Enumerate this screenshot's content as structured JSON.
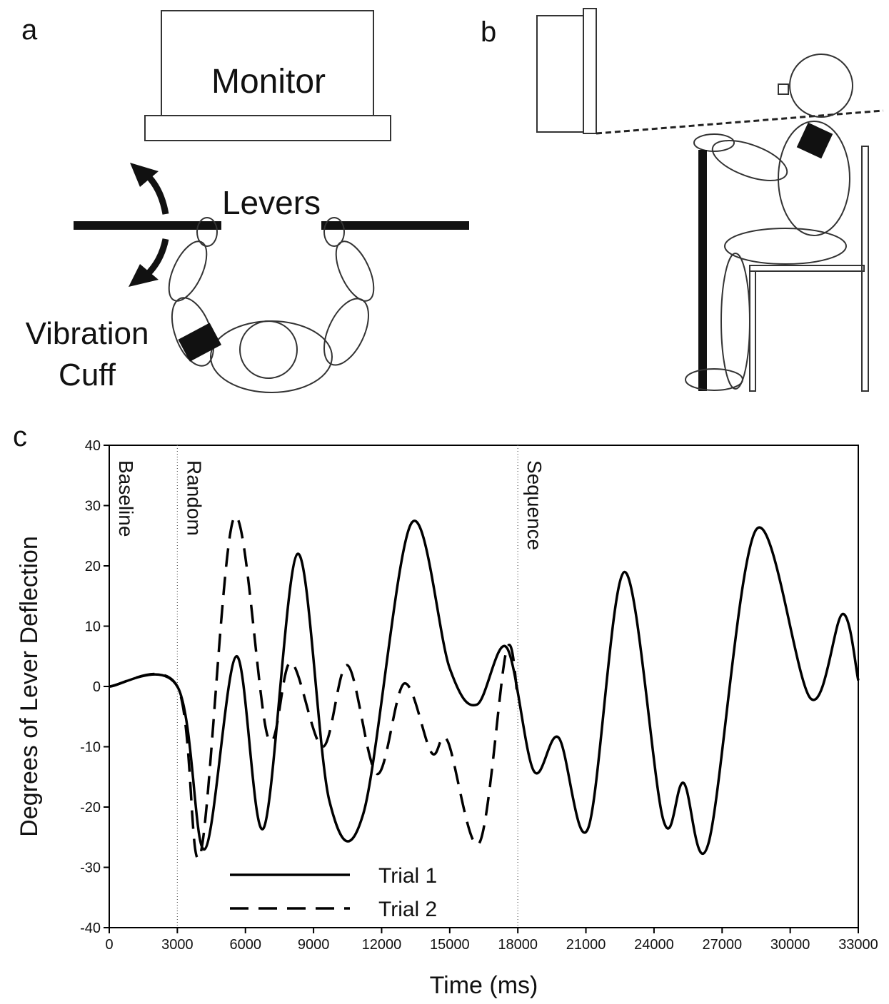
{
  "panel_labels": [
    "a",
    "b",
    "c"
  ],
  "diagram_a": {
    "monitor": "Monitor",
    "levers": "Levers",
    "cuff_line1": "Vibration",
    "cuff_line2": "Cuff"
  },
  "chart_data": {
    "type": "line",
    "xlabel": "Time (ms)",
    "ylabel": "Degrees of Lever Deflection",
    "xlim": [
      0,
      33000
    ],
    "xticks": [
      0,
      3000,
      6000,
      9000,
      12000,
      15000,
      18000,
      21000,
      24000,
      27000,
      30000,
      33000
    ],
    "ylim": [
      -40,
      40
    ],
    "yticks": [
      -40,
      -30,
      -20,
      -10,
      0,
      10,
      20,
      30,
      40
    ],
    "phases": [
      {
        "label": "Baseline",
        "start": 0
      },
      {
        "label": "Random",
        "start": 3000
      },
      {
        "label": "Sequence",
        "start": 18000
      }
    ],
    "legend": "lower left",
    "series": [
      {
        "name": "Trial 1",
        "color": "#000000",
        "dash": "solid",
        "x": [
          0,
          3000,
          4200,
          5600,
          6800,
          8300,
          9700,
          11200,
          13300,
          15000,
          16200,
          17500,
          18700,
          19800,
          21100,
          22700,
          24400,
          25300,
          26400,
          28500,
          30900,
          32300,
          33000
        ],
        "values": [
          0,
          0,
          -27,
          5,
          -23.5,
          22,
          -19,
          -21,
          27,
          3,
          -3,
          6.5,
          -14,
          -8.5,
          -23.5,
          19,
          -22,
          -16,
          -26,
          26,
          -2,
          12,
          1
        ]
      },
      {
        "name": "Trial 2",
        "color": "#000000",
        "dash": "dashed",
        "x": [
          0,
          3000,
          4000,
          5500,
          7000,
          8000,
          9400,
          10500,
          11800,
          13000,
          14200,
          14900,
          16300,
          17500,
          18000
        ],
        "values": [
          0,
          0,
          -28,
          28,
          -8.5,
          4,
          -10,
          3.5,
          -14.5,
          0.5,
          -11,
          -9,
          -26,
          6,
          -2
        ]
      }
    ]
  }
}
